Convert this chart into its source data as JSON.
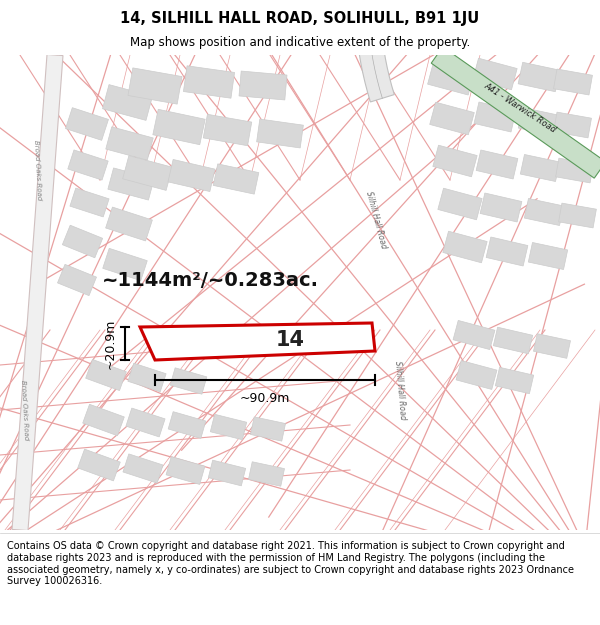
{
  "title_line1": "14, SILHILL HALL ROAD, SOLIHULL, B91 1JU",
  "title_line2": "Map shows position and indicative extent of the property.",
  "footer_text": "Contains OS data © Crown copyright and database right 2021. This information is subject to Crown copyright and database rights 2023 and is reproduced with the permission of HM Land Registry. The polygons (including the associated geometry, namely x, y co-ordinates) are subject to Crown copyright and database rights 2023 Ordnance Survey 100026316.",
  "area_m2": "~1144m²/~0.283ac.",
  "width_label": "~90.9m",
  "height_label": "~20.9m",
  "plot_number": "14",
  "map_bg": "#ffffff",
  "road_line_color": "#e8a0a0",
  "road_fill_color": "#f8f0f0",
  "building_color": "#d8d8d8",
  "building_edge": "#cccccc",
  "plot_edge": "#cc0000",
  "green_road_fill": "#c8dfc8",
  "green_road_edge": "#5a9a5a",
  "curved_road_color": "#e0e0e0",
  "road_label_A41": "A41 - Warwick Road",
  "road_label_silhill": "Silhill Hall Road",
  "road_label_broad_oaks": "Broad Oaks Road"
}
